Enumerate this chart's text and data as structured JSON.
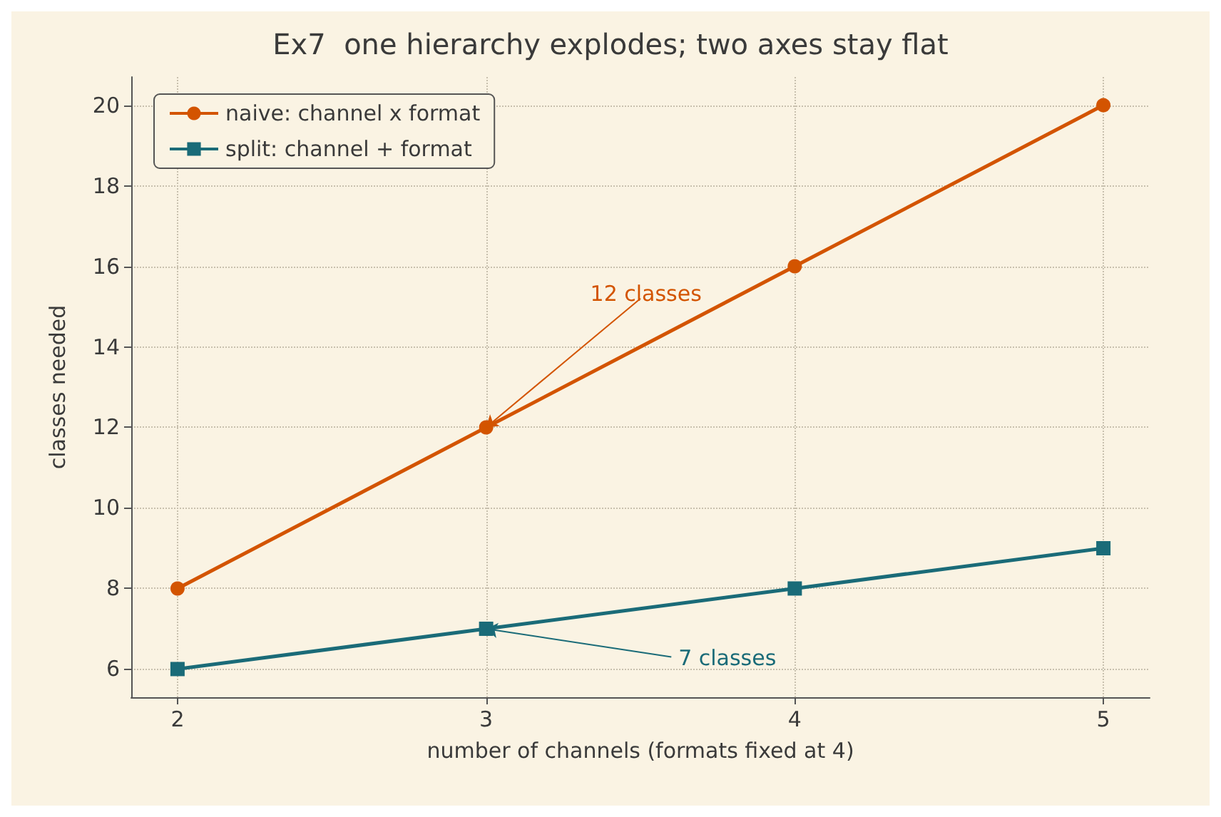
{
  "chart_data": {
    "type": "line",
    "title": "Ex7  one hierarchy explodes; two axes stay flat",
    "xlabel": "number of channels (formats fixed at 4)",
    "ylabel": "classes needed",
    "x": [
      2,
      3,
      4,
      5
    ],
    "series": [
      {
        "name": "naive: channel x format",
        "color": "#d35400",
        "values": [
          8,
          12,
          16,
          20
        ],
        "marker": "circle"
      },
      {
        "name": "split: channel + format",
        "color": "#1a6b78",
        "values": [
          6,
          7,
          8,
          9
        ],
        "marker": "square"
      }
    ],
    "xlim": [
      1.85,
      5.15
    ],
    "xticks": [
      2,
      3,
      4,
      5
    ],
    "ylim": [
      5.3,
      20.7
    ],
    "yticks": [
      6,
      8,
      10,
      12,
      14,
      16,
      18,
      20
    ],
    "grid": true,
    "legend": "top left",
    "line_style": "solid",
    "annotations": [
      {
        "text": "12 classes",
        "x": 3,
        "y": 12
      },
      {
        "text": "7 classes",
        "x": 3,
        "y": 7
      }
    ]
  }
}
